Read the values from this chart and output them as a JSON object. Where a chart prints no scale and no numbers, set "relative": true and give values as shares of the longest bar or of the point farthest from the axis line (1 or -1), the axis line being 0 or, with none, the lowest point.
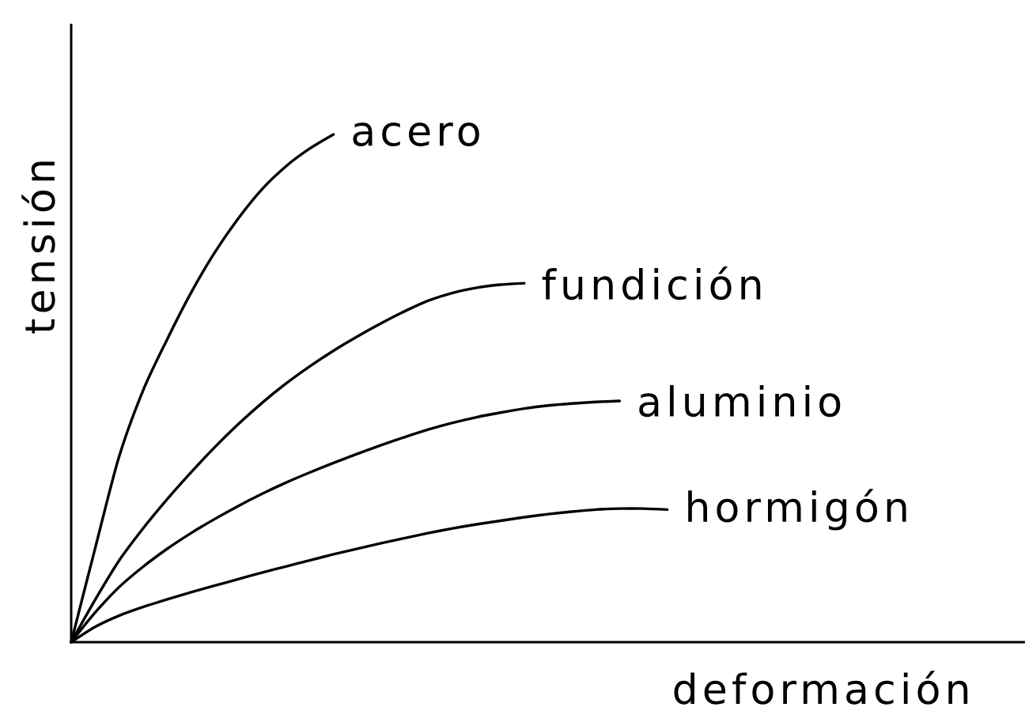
{
  "chart_data": {
    "type": "line",
    "xlabel": "deformación",
    "ylabel": "tensión",
    "relative": true,
    "line_style": "solid",
    "categories": [
      null,
      null,
      null,
      null,
      null,
      null,
      null,
      null,
      null,
      null,
      null,
      null,
      null,
      null,
      null,
      null,
      null,
      null,
      null,
      null,
      null,
      null,
      null,
      null,
      null,
      null,
      null,
      null,
      null,
      null,
      null,
      null,
      null,
      null,
      null,
      null,
      null,
      null,
      null,
      null,
      null
    ],
    "series": [
      {
        "name": "acero",
        "color": "#000000",
        "values": [
          0,
          0.184,
          0.364,
          0.494,
          0.594,
          0.686,
          0.766,
          0.834,
          0.892,
          0.937,
          0.972,
          1,
          null,
          null,
          null,
          null,
          null,
          null,
          null,
          null,
          null,
          null,
          null,
          null,
          null,
          null,
          null,
          null,
          null,
          null,
          null,
          null,
          null,
          null,
          null,
          null,
          null,
          null,
          null,
          null,
          null
        ]
      },
      {
        "name": "fundición",
        "color": "#000000",
        "values": [
          0,
          0.083,
          0.16,
          0.223,
          0.28,
          0.333,
          0.383,
          0.429,
          0.471,
          0.509,
          0.543,
          0.574,
          0.602,
          0.628,
          0.652,
          0.673,
          0.688,
          0.698,
          0.704,
          0.707,
          null,
          null,
          null,
          null,
          null,
          null,
          null,
          null,
          null,
          null,
          null,
          null,
          null,
          null,
          null,
          null,
          null,
          null,
          null,
          null,
          null
        ]
      },
      {
        "name": "aluminio",
        "color": "#000000",
        "values": [
          0,
          0.058,
          0.108,
          0.148,
          0.183,
          0.214,
          0.242,
          0.268,
          0.292,
          0.314,
          0.334,
          0.353,
          0.371,
          0.388,
          0.404,
          0.419,
          0.432,
          0.443,
          0.452,
          0.46,
          0.466,
          0.47,
          0.473,
          0.475,
          null,
          null,
          null,
          null,
          null,
          null,
          null,
          null,
          null,
          null,
          null,
          null,
          null,
          null,
          null,
          null,
          null
        ]
      },
      {
        "name": "hormigón",
        "color": "#000000",
        "values": [
          0,
          0.03,
          0.052,
          0.069,
          0.084,
          0.098,
          0.111,
          0.124,
          0.137,
          0.149,
          0.161,
          0.173,
          0.184,
          0.195,
          0.205,
          0.215,
          0.224,
          0.232,
          0.239,
          0.246,
          0.252,
          0.257,
          0.261,
          0.263,
          0.263,
          0.261,
          null,
          null,
          null,
          null,
          null,
          null,
          null,
          null,
          null,
          null,
          null,
          null,
          null,
          null,
          null
        ]
      }
    ]
  }
}
